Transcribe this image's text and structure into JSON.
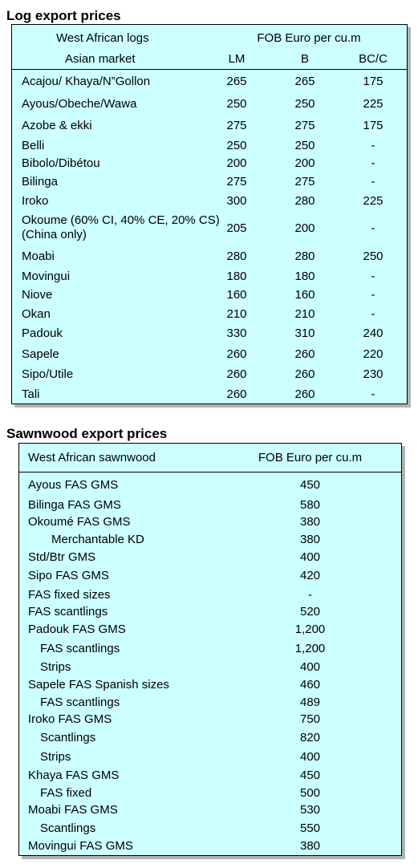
{
  "log_section": {
    "title": "Log export prices",
    "header": {
      "left_line1": "West African logs",
      "left_line2": "Asian market",
      "unit": "FOB Euro per cu.m",
      "col_lm": "LM",
      "col_b": "B",
      "col_bcc": "BC/C"
    },
    "rows": [
      {
        "name": "Acajou/ Khaya/N”Gollon",
        "lm": "265",
        "b": "265",
        "bcc": "175"
      },
      {
        "name": "Ayous/Obeche/Wawa",
        "lm": "250",
        "b": "250",
        "bcc": "225"
      },
      {
        "name": "Azobe & ekki",
        "lm": "275",
        "b": "275",
        "bcc": "175"
      },
      {
        "name": "Belli",
        "lm": "250",
        "b": "250",
        "bcc": "-"
      },
      {
        "name": "Bibolo/Dibétou",
        "lm": "200",
        "b": "200",
        "bcc": "-"
      },
      {
        "name": "Bilinga",
        "lm": "275",
        "b": "275",
        "bcc": "-"
      },
      {
        "name": "Iroko",
        "lm": "300",
        "b": "280",
        "bcc": "225"
      },
      {
        "name": "Okoume (60% CI, 40% CE, 20% CS) (China only)",
        "lm": "205",
        "b": "200",
        "bcc": "-"
      },
      {
        "name": "Moabi",
        "lm": "280",
        "b": "280",
        "bcc": "250"
      },
      {
        "name": "Movingui",
        "lm": "180",
        "b": "180",
        "bcc": "-"
      },
      {
        "name": "Niove",
        "lm": "160",
        "b": "160",
        "bcc": "-"
      },
      {
        "name": "Okan",
        "lm": "210",
        "b": "210",
        "bcc": "-"
      },
      {
        "name": "Padouk",
        "lm": "330",
        "b": "310",
        "bcc": "240"
      },
      {
        "name": "Sapele",
        "lm": "260",
        "b": "260",
        "bcc": "220"
      },
      {
        "name": "Sipo/Utile",
        "lm": "260",
        "b": "260",
        "bcc": "230"
      },
      {
        "name": "Tali",
        "lm": "260",
        "b": "260",
        "bcc": "-"
      }
    ]
  },
  "sawn_section": {
    "title": "Sawnwood export prices",
    "header": {
      "left": "West African sawnwood",
      "unit": "FOB Euro per cu.m"
    },
    "rows": [
      {
        "name": "Ayous FAS GMS",
        "value": "450",
        "indent": 0
      },
      {
        "name": "Bilinga FAS GMS",
        "value": "580",
        "indent": 0
      },
      {
        "name": "Okoumé FAS GMS",
        "value": "380",
        "indent": 0
      },
      {
        "name": "Merchantable KD",
        "value": "380",
        "indent": 2
      },
      {
        "name": "Std/Btr GMS",
        "value": "400",
        "indent": 0
      },
      {
        "name": "Sipo FAS GMS",
        "value": "420",
        "indent": 0
      },
      {
        "name": "FAS fixed sizes",
        "value": "-",
        "indent": 0
      },
      {
        "name": "FAS scantlings",
        "value": "520",
        "indent": 0
      },
      {
        "name": "Padouk FAS GMS",
        "value": "1,200",
        "indent": 0
      },
      {
        "name": "FAS scantlings",
        "value": "1,200",
        "indent": 1
      },
      {
        "name": "Strips",
        "value": "400",
        "indent": 1
      },
      {
        "name": "Sapele FAS Spanish sizes",
        "value": "460",
        "indent": 0
      },
      {
        "name": "FAS scantlings",
        "value": "489",
        "indent": 1
      },
      {
        "name": "Iroko FAS GMS",
        "value": "750",
        "indent": 0
      },
      {
        "name": "Scantlings",
        "value": "820",
        "indent": 1
      },
      {
        "name": "Strips",
        "value": "400",
        "indent": 1
      },
      {
        "name": "Khaya FAS GMS",
        "value": "450",
        "indent": 0
      },
      {
        "name": "FAS fixed",
        "value": "500",
        "indent": 1
      },
      {
        "name": "Moabi FAS GMS",
        "value": "530",
        "indent": 0
      },
      {
        "name": "Scantlings",
        "value": "550",
        "indent": 1
      },
      {
        "name": "Movingui FAS GMS",
        "value": "380",
        "indent": 0
      }
    ]
  }
}
